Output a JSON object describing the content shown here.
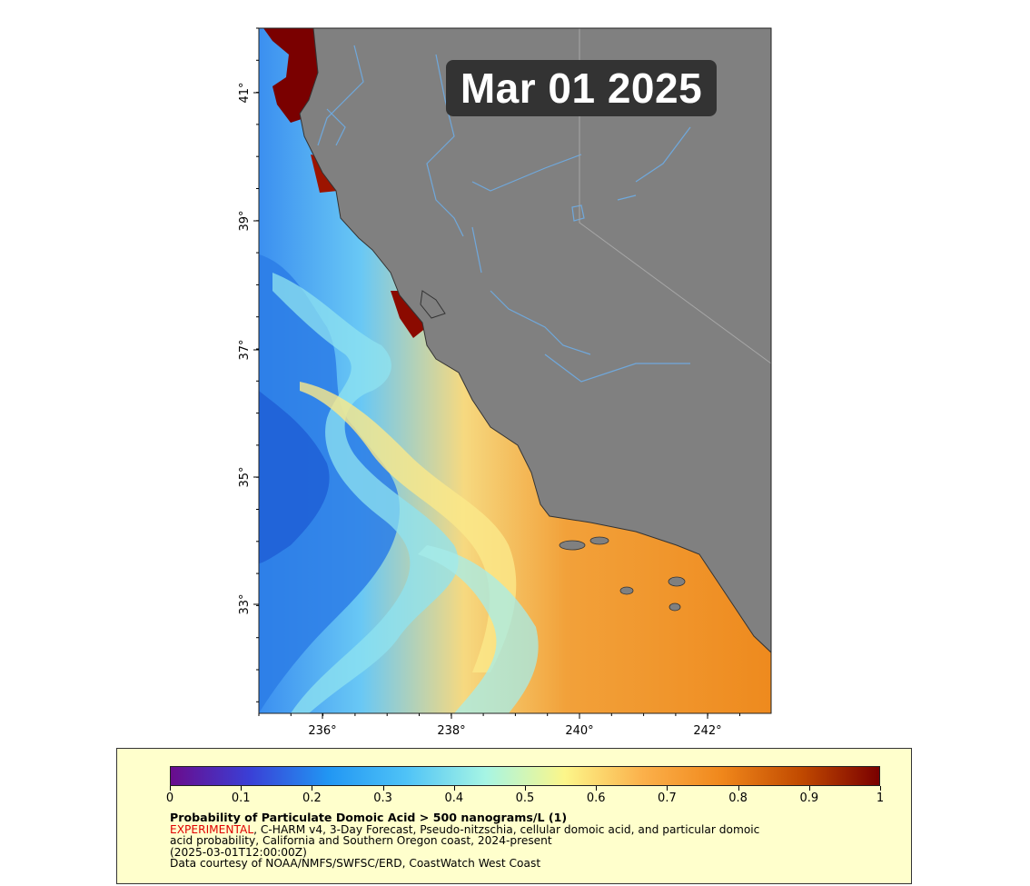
{
  "map": {
    "date_label": "Mar 01 2025",
    "ocean_color": "#f2a13a",
    "land_color": "#808080",
    "river_color": "#6fa8dc",
    "lat_ticks": [
      "41°",
      "39°",
      "37°",
      "35°",
      "33°"
    ],
    "lon_ticks": [
      "236°",
      "238°",
      "240°",
      "242°"
    ]
  },
  "legend": {
    "colorbar_ticks": [
      "0",
      "0.1",
      "0.2",
      "0.3",
      "0.4",
      "0.5",
      "0.6",
      "0.7",
      "0.8",
      "0.9",
      "1"
    ],
    "colorbar_colors": [
      "#6a0c8c",
      "#3a3fd6",
      "#2196f3",
      "#4fc3f7",
      "#a6f5e4",
      "#fcf68a",
      "#fbb04a",
      "#f0871b",
      "#c14a00",
      "#7a0000"
    ],
    "title": "Probability of Particulate Domoic Acid > 500 nanograms/L (1)",
    "experimental": "EXPERIMENTAL",
    "line1_rest": ", C-HARM v4, 3-Day Forecast, Pseudo-nitzschia, cellular domoic acid, and particular domoic",
    "line2": "acid probability, California and Southern Oregon coast, 2024-present",
    "line3": "(2025-03-01T12:00:00Z)",
    "line4": "Data courtesy of NOAA/NMFS/SWFSC/ERD, CoastWatch West Coast"
  }
}
